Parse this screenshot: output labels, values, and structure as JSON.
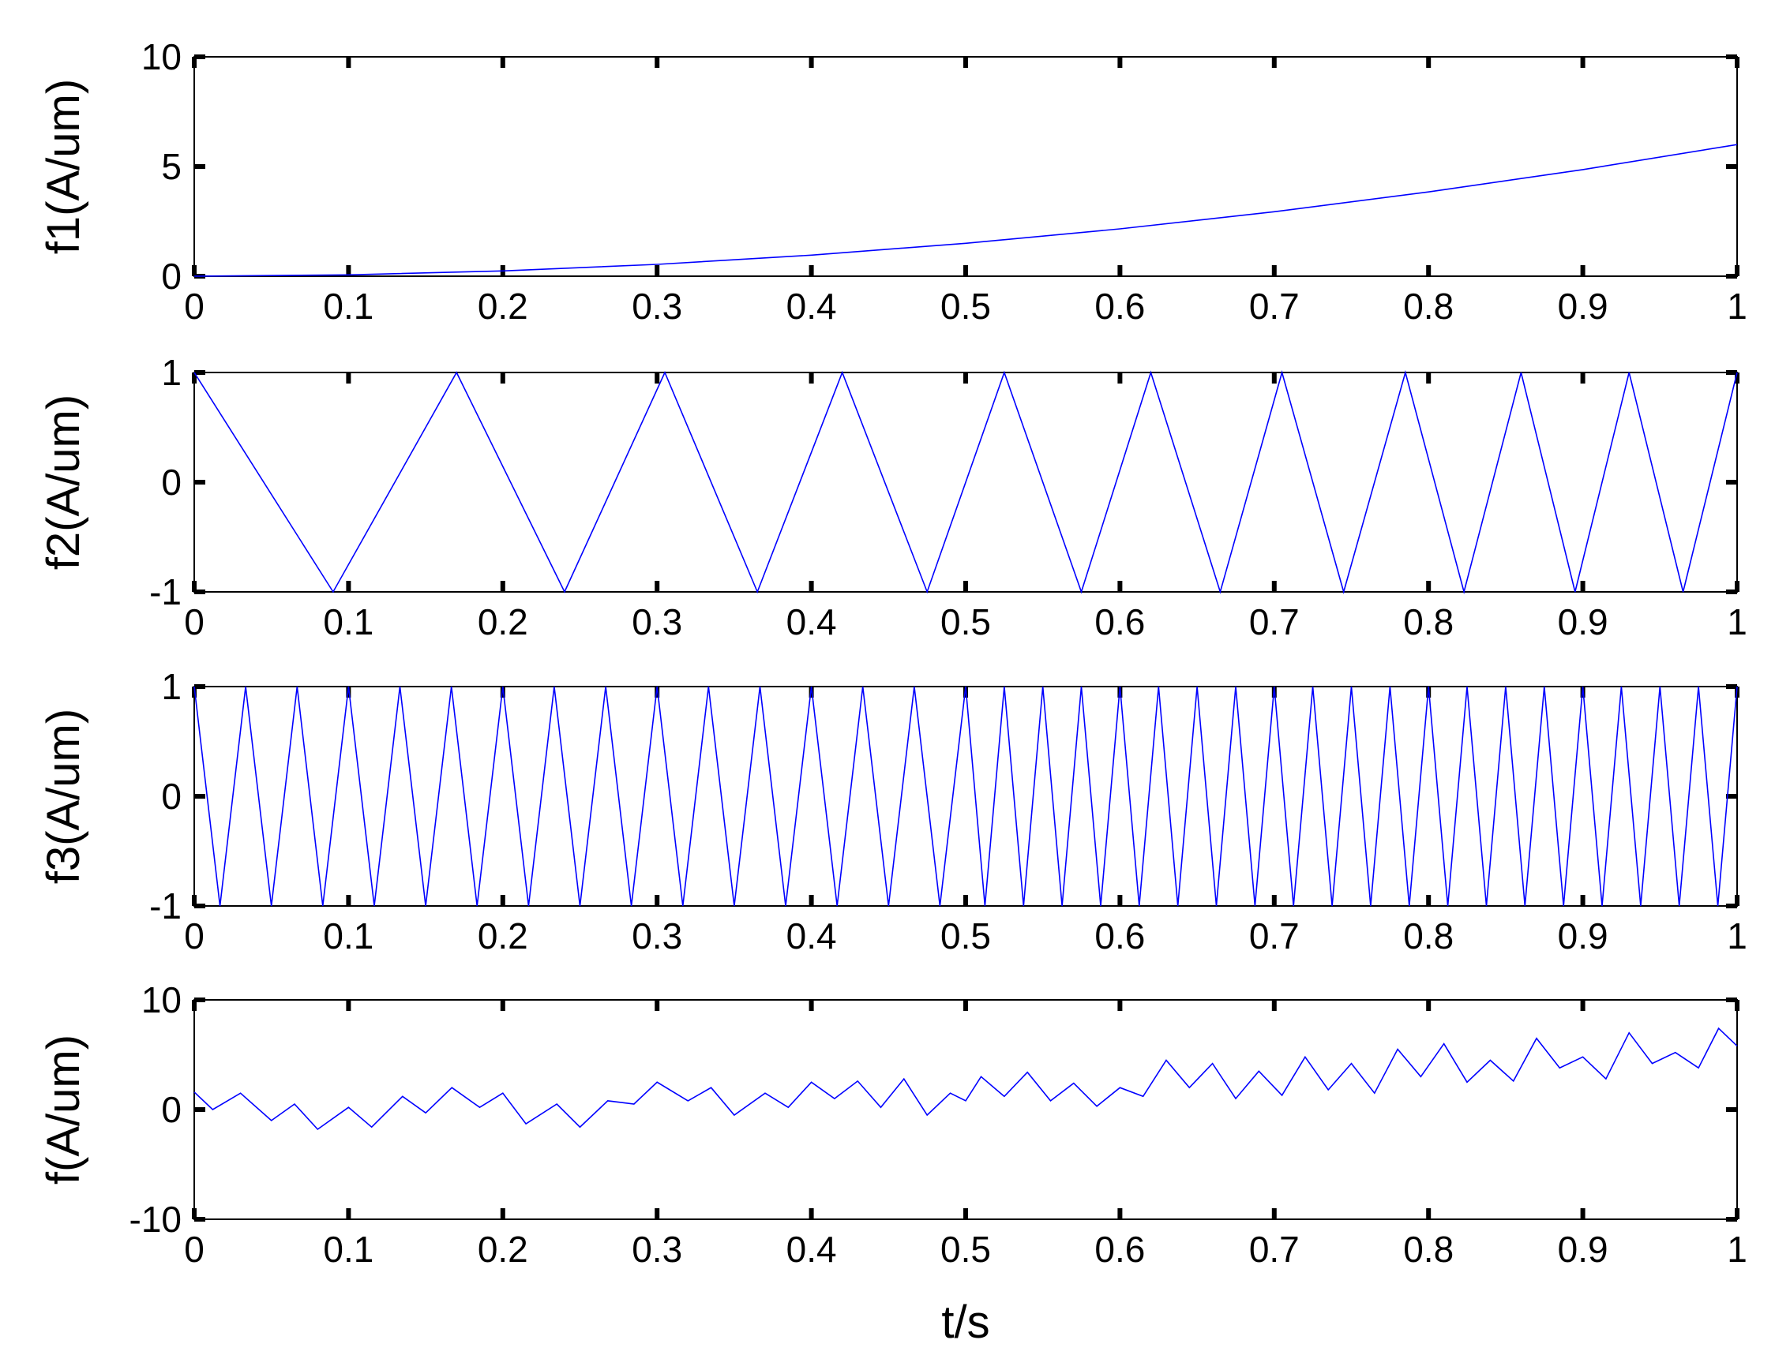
{
  "chart_data": [
    {
      "type": "line",
      "ylabel": "f1(A/um)",
      "xlabel": "",
      "xlim": [
        0,
        1
      ],
      "ylim": [
        0,
        10
      ],
      "xticks": [
        "0",
        "0.1",
        "0.2",
        "0.3",
        "0.4",
        "0.5",
        "0.6",
        "0.7",
        "0.8",
        "0.9",
        "1"
      ],
      "yticks": [
        "10",
        "5",
        "0"
      ],
      "ytick_values": [
        10,
        5,
        0
      ],
      "grid": false,
      "series_color": "#0000ff",
      "series": [
        {
          "x": [
            0,
            0.1,
            0.2,
            0.3,
            0.4,
            0.5,
            0.6,
            0.7,
            0.8,
            0.9,
            1.0
          ],
          "y": [
            0.0,
            0.06,
            0.24,
            0.54,
            0.96,
            1.5,
            2.16,
            2.94,
            3.84,
            4.86,
            6.0
          ]
        }
      ]
    },
    {
      "type": "line",
      "ylabel": "f2(A/um)",
      "xlabel": "",
      "xlim": [
        0,
        1
      ],
      "ylim": [
        -1,
        1
      ],
      "xticks": [
        "0",
        "0.1",
        "0.2",
        "0.3",
        "0.4",
        "0.5",
        "0.6",
        "0.7",
        "0.8",
        "0.9",
        "1"
      ],
      "yticks": [
        "1",
        "0",
        "-1"
      ],
      "ytick_values": [
        1,
        0,
        -1
      ],
      "grid": false,
      "series_color": "#0000ff",
      "series": [
        {
          "x": [
            0,
            0.09,
            0.17,
            0.24,
            0.305,
            0.365,
            0.42,
            0.475,
            0.525,
            0.575,
            0.62,
            0.665,
            0.705,
            0.745,
            0.785,
            0.823,
            0.86,
            0.895,
            0.93,
            0.965,
            1.0
          ],
          "y": [
            1,
            -1,
            1,
            -1,
            1,
            -1,
            1,
            -1,
            1,
            -1,
            1,
            -1,
            1,
            -1,
            1,
            -1,
            1,
            -1,
            1,
            -1,
            1
          ]
        }
      ]
    },
    {
      "type": "line",
      "ylabel": "f3(A/um)",
      "xlabel": "",
      "xlim": [
        0,
        1
      ],
      "ylim": [
        -1,
        1
      ],
      "xticks": [
        "0",
        "0.1",
        "0.2",
        "0.3",
        "0.4",
        "0.5",
        "0.6",
        "0.7",
        "0.8",
        "0.9",
        "1"
      ],
      "yticks": [
        "1",
        "0",
        "-1"
      ],
      "ytick_values": [
        1,
        0,
        -1
      ],
      "grid": false,
      "series_color": "#0000ff",
      "series": [
        {
          "x": [
            0,
            0.0167,
            0.0333,
            0.05,
            0.0667,
            0.0833,
            0.1,
            0.1167,
            0.1333,
            0.15,
            0.1667,
            0.1833,
            0.2,
            0.2167,
            0.2333,
            0.25,
            0.2667,
            0.2833,
            0.3,
            0.3167,
            0.3333,
            0.35,
            0.3667,
            0.3833,
            0.4,
            0.4167,
            0.4333,
            0.45,
            0.4667,
            0.4833,
            0.5,
            0.5125,
            0.525,
            0.5375,
            0.55,
            0.5625,
            0.575,
            0.5875,
            0.6,
            0.6125,
            0.625,
            0.6375,
            0.65,
            0.6625,
            0.675,
            0.6875,
            0.7,
            0.7125,
            0.725,
            0.7375,
            0.75,
            0.7625,
            0.775,
            0.7875,
            0.8,
            0.8125,
            0.825,
            0.8375,
            0.85,
            0.8625,
            0.875,
            0.8875,
            0.9,
            0.9125,
            0.925,
            0.9375,
            0.95,
            0.9625,
            0.975,
            0.9875,
            1.0
          ],
          "y": [
            1,
            -1,
            1,
            -1,
            1,
            -1,
            1,
            -1,
            1,
            -1,
            1,
            -1,
            1,
            -1,
            1,
            -1,
            1,
            -1,
            1,
            -1,
            1,
            -1,
            1,
            -1,
            1,
            -1,
            1,
            -1,
            1,
            -1,
            1,
            -1,
            1,
            -1,
            1,
            -1,
            1,
            -1,
            1,
            -1,
            1,
            -1,
            1,
            -1,
            1,
            -1,
            1,
            -1,
            1,
            -1,
            1,
            -1,
            1,
            -1,
            1,
            -1,
            1,
            -1,
            1,
            -1,
            1,
            -1,
            1,
            -1,
            1,
            -1,
            1,
            -1,
            1,
            -1,
            1
          ]
        }
      ]
    },
    {
      "type": "line",
      "ylabel": "f(A/um)",
      "xlabel": "t/s",
      "xlim": [
        0,
        1
      ],
      "ylim": [
        -10,
        10
      ],
      "xticks": [
        "0",
        "0.1",
        "0.2",
        "0.3",
        "0.4",
        "0.5",
        "0.6",
        "0.7",
        "0.8",
        "0.9",
        "1"
      ],
      "yticks": [
        "10",
        "0",
        "-10"
      ],
      "ytick_values": [
        10,
        0,
        -10
      ],
      "grid": false,
      "series_color": "#0000ff",
      "series": [
        {
          "x": [
            0,
            0.012,
            0.03,
            0.05,
            0.065,
            0.08,
            0.1,
            0.115,
            0.135,
            0.15,
            0.167,
            0.185,
            0.2,
            0.215,
            0.235,
            0.25,
            0.268,
            0.285,
            0.3,
            0.32,
            0.335,
            0.35,
            0.37,
            0.385,
            0.4,
            0.415,
            0.43,
            0.445,
            0.46,
            0.475,
            0.49,
            0.5,
            0.51,
            0.525,
            0.54,
            0.555,
            0.57,
            0.585,
            0.6,
            0.615,
            0.63,
            0.645,
            0.66,
            0.675,
            0.69,
            0.705,
            0.72,
            0.735,
            0.75,
            0.765,
            0.78,
            0.795,
            0.81,
            0.825,
            0.84,
            0.855,
            0.87,
            0.885,
            0.9,
            0.915,
            0.93,
            0.945,
            0.96,
            0.975,
            0.988,
            1.0
          ],
          "y": [
            1.6,
            0.0,
            1.5,
            -1.0,
            0.5,
            -1.8,
            0.2,
            -1.6,
            1.2,
            -0.3,
            2.0,
            0.2,
            1.5,
            -1.3,
            0.5,
            -1.6,
            0.8,
            0.5,
            2.5,
            0.8,
            2.0,
            -0.5,
            1.5,
            0.2,
            2.5,
            1.0,
            2.6,
            0.2,
            2.8,
            -0.5,
            1.5,
            0.8,
            3.0,
            1.2,
            3.4,
            0.8,
            2.4,
            0.3,
            2.0,
            1.2,
            4.5,
            2.0,
            4.2,
            1.0,
            3.5,
            1.3,
            4.8,
            1.8,
            4.2,
            1.5,
            5.5,
            3.0,
            6.0,
            2.5,
            4.5,
            2.6,
            6.5,
            3.8,
            4.8,
            2.8,
            7.0,
            4.2,
            5.2,
            3.8,
            7.4,
            5.8
          ]
        }
      ]
    }
  ]
}
